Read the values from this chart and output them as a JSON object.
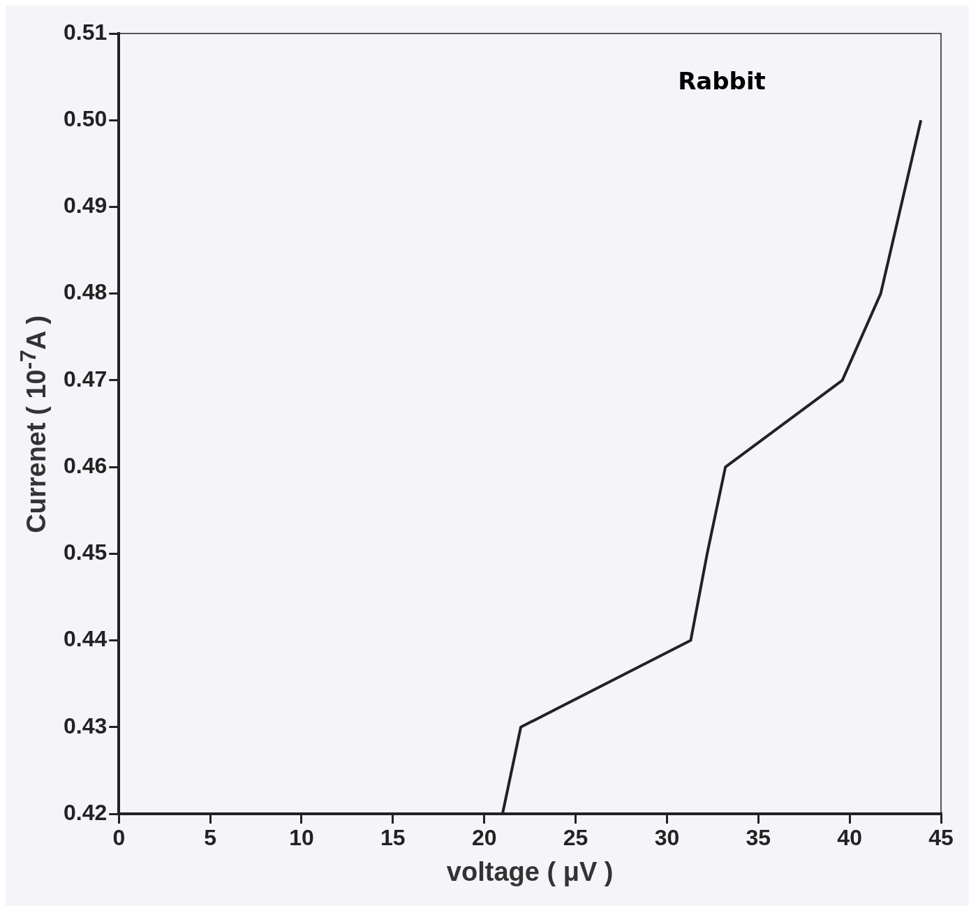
{
  "chart_data": {
    "type": "line",
    "xlabel": "voltage ( μV )",
    "ylabel": "Currenet ( 10$^{-7}$A )",
    "annotations": [
      "Rabbit"
    ],
    "x": [
      21,
      22,
      31.3,
      32.2,
      33.2,
      39.6,
      41.7,
      43.9
    ],
    "series": [
      {
        "color": "#222222",
        "values": [
          0.42,
          0.43,
          0.44,
          0.45,
          0.46,
          0.47,
          0.48,
          0.5
        ]
      }
    ],
    "xlim": [
      0,
      45
    ],
    "xticks": [
      0,
      5,
      10,
      15,
      20,
      25,
      30,
      35,
      40,
      45
    ],
    "ylim": [
      0.42,
      0.51
    ],
    "yticks": [
      {
        "value": 0.42,
        "label": "0.42"
      },
      {
        "value": 0.43,
        "label": "0.43"
      },
      {
        "value": 0.44,
        "label": "0.44"
      },
      {
        "value": 0.45,
        "label": "0.45"
      },
      {
        "value": 0.46,
        "label": "0.46"
      },
      {
        "value": 0.47,
        "label": "0.47"
      },
      {
        "value": 0.48,
        "label": "0.48"
      },
      {
        "value": 0.49,
        "label": "0.49"
      },
      {
        "value": 0.5,
        "label": "0.50"
      },
      {
        "value": 0.51,
        "label": "0.51"
      }
    ],
    "grid": false,
    "legend": false,
    "marker": "none",
    "line_style": "solid"
  }
}
